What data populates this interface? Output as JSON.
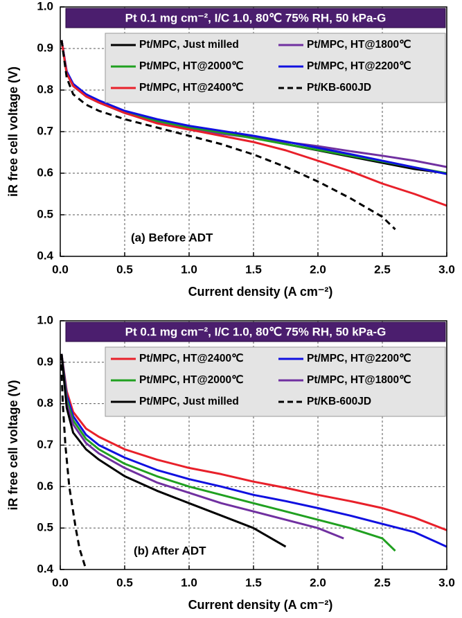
{
  "chart_data": [
    {
      "type": "line",
      "header": "Pt 0.1 mg cm⁻², I/C 1.0, 80℃ 75% RH, 50 kPa-G",
      "annotation": "(a) Before ADT",
      "x_label": "Current density (A cm⁻²)",
      "y_label": "iR free cell voltage (V)",
      "xlim": [
        0,
        3
      ],
      "ylim": [
        0.4,
        1
      ],
      "xticks": [
        {
          "value": 0,
          "label": "0.0"
        },
        0.5,
        {
          "value": 1,
          "label": "1.0"
        },
        1.5,
        {
          "value": 2,
          "label": "2.0"
        },
        2.5,
        {
          "value": 3,
          "label": "3.0"
        }
      ],
      "yticks": [
        0.4,
        0.5,
        0.6,
        0.7,
        0.8,
        0.9,
        {
          "value": 1,
          "label": "1.0"
        }
      ],
      "grid": true,
      "series": [
        {
          "name": "Pt/MPC, Just milled",
          "color": "#000000",
          "line_style": "solid",
          "x": [
            0.01,
            0.05,
            0.1,
            0.2,
            0.3,
            0.5,
            0.75,
            1.0,
            1.25,
            1.5,
            1.75,
            2.0,
            2.25,
            2.5,
            2.75,
            3.0
          ],
          "values": [
            0.92,
            0.84,
            0.81,
            0.785,
            0.77,
            0.745,
            0.725,
            0.71,
            0.7,
            0.685,
            0.67,
            0.655,
            0.64,
            0.625,
            0.61,
            0.6
          ]
        },
        {
          "name": "Pt/MPC, HT@1800℃",
          "color": "#7030a0",
          "line_style": "solid",
          "x": [
            0.01,
            0.05,
            0.1,
            0.2,
            0.3,
            0.5,
            0.75,
            1.0,
            1.25,
            1.5,
            1.75,
            2.0,
            2.25,
            2.5,
            2.75,
            3.0
          ],
          "values": [
            0.92,
            0.84,
            0.81,
            0.785,
            0.77,
            0.745,
            0.722,
            0.705,
            0.695,
            0.685,
            0.675,
            0.665,
            0.653,
            0.642,
            0.63,
            0.615
          ]
        },
        {
          "name": "Pt/MPC, HT@2000℃",
          "color": "#20a020",
          "line_style": "solid",
          "x": [
            0.01,
            0.05,
            0.1,
            0.2,
            0.3,
            0.5,
            0.75,
            1.0,
            1.25,
            1.5,
            1.75,
            2.0,
            2.25,
            2.5,
            2.75,
            3.0
          ],
          "values": [
            0.92,
            0.84,
            0.812,
            0.787,
            0.772,
            0.748,
            0.726,
            0.71,
            0.698,
            0.684,
            0.67,
            0.656,
            0.642,
            0.628,
            0.614,
            0.6
          ]
        },
        {
          "name": "Pt/MPC, HT@2200℃",
          "color": "#1010e0",
          "line_style": "solid",
          "x": [
            0.01,
            0.05,
            0.1,
            0.2,
            0.3,
            0.5,
            0.75,
            1.0,
            1.25,
            1.5,
            1.75,
            2.0,
            2.25,
            2.5,
            2.75,
            3.0
          ],
          "values": [
            0.92,
            0.845,
            0.815,
            0.79,
            0.775,
            0.75,
            0.73,
            0.714,
            0.702,
            0.69,
            0.676,
            0.661,
            0.646,
            0.63,
            0.614,
            0.598
          ]
        },
        {
          "name": "Pt/MPC, HT@2400℃",
          "color": "#e8202a",
          "line_style": "solid",
          "x": [
            0.01,
            0.05,
            0.1,
            0.2,
            0.3,
            0.5,
            0.75,
            1.0,
            1.25,
            1.5,
            1.75,
            2.0,
            2.25,
            2.5,
            2.75,
            3.0
          ],
          "values": [
            0.92,
            0.84,
            0.81,
            0.785,
            0.77,
            0.745,
            0.72,
            0.705,
            0.69,
            0.675,
            0.655,
            0.63,
            0.605,
            0.575,
            0.55,
            0.522
          ]
        },
        {
          "name": "Pt/KB-600JD",
          "color": "#000000",
          "line_style": "dashed",
          "x": [
            0.01,
            0.05,
            0.1,
            0.2,
            0.3,
            0.5,
            0.75,
            1.0,
            1.25,
            1.5,
            1.75,
            2.0,
            2.25,
            2.5,
            2.6
          ],
          "values": [
            0.92,
            0.83,
            0.79,
            0.765,
            0.75,
            0.73,
            0.71,
            0.69,
            0.67,
            0.645,
            0.615,
            0.58,
            0.54,
            0.495,
            0.465
          ]
        }
      ]
    },
    {
      "type": "line",
      "header": "Pt 0.1 mg cm⁻², I/C 1.0, 80℃ 75% RH, 50 kPa-G",
      "annotation": "(b) After ADT",
      "x_label": "Current density (A cm⁻²)",
      "y_label": "iR free cell voltage (V)",
      "xlim": [
        0,
        3
      ],
      "ylim": [
        0.4,
        1
      ],
      "xticks": [
        {
          "value": 0,
          "label": "0.0"
        },
        0.5,
        {
          "value": 1,
          "label": "1.0"
        },
        1.5,
        {
          "value": 2,
          "label": "2.0"
        },
        2.5,
        {
          "value": 3,
          "label": "3.0"
        }
      ],
      "yticks": [
        0.4,
        0.5,
        0.6,
        0.7,
        0.8,
        0.9,
        {
          "value": 1,
          "label": "1.0"
        }
      ],
      "grid": true,
      "series": [
        {
          "name": "Pt/MPC, HT@2400℃",
          "color": "#e8202a",
          "line_style": "solid",
          "x": [
            0.01,
            0.05,
            0.1,
            0.2,
            0.3,
            0.5,
            0.75,
            1.0,
            1.25,
            1.5,
            1.75,
            2.0,
            2.25,
            2.5,
            2.75,
            3.0
          ],
          "values": [
            0.92,
            0.83,
            0.78,
            0.74,
            0.72,
            0.69,
            0.665,
            0.645,
            0.63,
            0.612,
            0.597,
            0.58,
            0.565,
            0.548,
            0.525,
            0.495
          ]
        },
        {
          "name": "Pt/MPC, HT@2200℃",
          "color": "#1010e0",
          "line_style": "solid",
          "x": [
            0.01,
            0.05,
            0.1,
            0.2,
            0.3,
            0.5,
            0.75,
            1.0,
            1.25,
            1.5,
            1.75,
            2.0,
            2.25,
            2.5,
            2.75,
            3.0
          ],
          "values": [
            0.92,
            0.82,
            0.77,
            0.725,
            0.7,
            0.67,
            0.64,
            0.618,
            0.6,
            0.58,
            0.565,
            0.548,
            0.53,
            0.51,
            0.49,
            0.455
          ]
        },
        {
          "name": "Pt/MPC, HT@2000℃",
          "color": "#20a020",
          "line_style": "solid",
          "x": [
            0.01,
            0.05,
            0.1,
            0.2,
            0.3,
            0.5,
            0.75,
            1.0,
            1.25,
            1.5,
            1.75,
            2.0,
            2.25,
            2.5,
            2.6
          ],
          "values": [
            0.92,
            0.81,
            0.76,
            0.715,
            0.69,
            0.655,
            0.625,
            0.6,
            0.58,
            0.56,
            0.54,
            0.52,
            0.5,
            0.475,
            0.445
          ]
        },
        {
          "name": "Pt/MPC, HT@1800℃",
          "color": "#7030a0",
          "line_style": "solid",
          "x": [
            0.01,
            0.05,
            0.1,
            0.2,
            0.3,
            0.5,
            0.75,
            1.0,
            1.25,
            1.5,
            1.75,
            2.0,
            2.2
          ],
          "values": [
            0.92,
            0.8,
            0.75,
            0.705,
            0.68,
            0.645,
            0.61,
            0.585,
            0.56,
            0.54,
            0.52,
            0.5,
            0.475
          ]
        },
        {
          "name": "Pt/MPC, Just milled",
          "color": "#000000",
          "line_style": "solid",
          "x": [
            0.01,
            0.05,
            0.1,
            0.2,
            0.3,
            0.5,
            0.75,
            1.0,
            1.25,
            1.5,
            1.75
          ],
          "values": [
            0.92,
            0.79,
            0.73,
            0.69,
            0.665,
            0.625,
            0.59,
            0.56,
            0.53,
            0.5,
            0.455
          ]
        },
        {
          "name": "Pt/KB-600JD",
          "color": "#000000",
          "line_style": "dashed",
          "x": [
            0.005,
            0.02,
            0.04,
            0.07,
            0.12,
            0.15,
            0.2
          ],
          "values": [
            0.92,
            0.8,
            0.7,
            0.6,
            0.5,
            0.45,
            0.4
          ]
        }
      ]
    }
  ]
}
